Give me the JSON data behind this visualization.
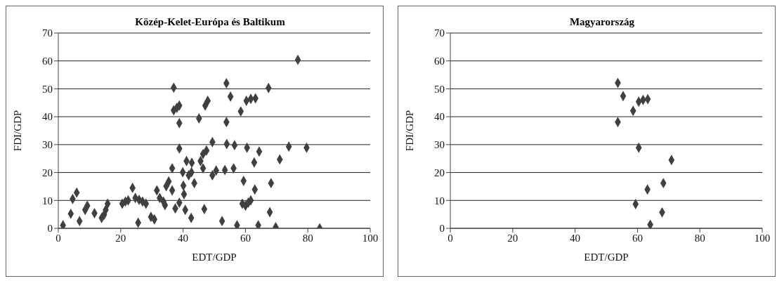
{
  "chart_data": [
    {
      "type": "scatter",
      "title": "Közép-Kelet-Európa és Baltikum",
      "xlabel": "EDT/GDP",
      "ylabel": "FDI/GDP",
      "xlim": [
        0,
        100
      ],
      "xticks": [
        0,
        20,
        40,
        60,
        80,
        100
      ],
      "ylim": [
        0,
        70
      ],
      "yticks": [
        0,
        10,
        20,
        30,
        40,
        50,
        60,
        70
      ],
      "grid": "y",
      "marker": "diamond",
      "series": [
        {
          "color": "#404040",
          "x": [
            1.5,
            4,
            4.6,
            5.9,
            6.8,
            8.6,
            9.3,
            11.6,
            13.9,
            14.7,
            15.2,
            15.8,
            20.5,
            21.5,
            22.4,
            23.8,
            24.7,
            25.9,
            25.6,
            27,
            28.1,
            29.7,
            30.8,
            31.6,
            32.5,
            33.7,
            34.2,
            34.6,
            35.4,
            36.5,
            36.5,
            37,
            37.5,
            37,
            38,
            38.8,
            38.8,
            38.8,
            38.8,
            39.9,
            40.1,
            40.3,
            40.7,
            41.1,
            42.8,
            41.8,
            42.7,
            42.6,
            43.6,
            45.1,
            45.6,
            46.4,
            47.5,
            46.8,
            46.4,
            47.1,
            47.9,
            49.4,
            49.4,
            50.6,
            53.4,
            53.9,
            53.9,
            52.5,
            54,
            55.2,
            56.2,
            56.5,
            57.3,
            58.5,
            59.4,
            59,
            60,
            60.9,
            61.7,
            60.5,
            60.3,
            61.7,
            63.2,
            62.8,
            63,
            64.1,
            64.4,
            67.4,
            67.8,
            68.2,
            69.7,
            71,
            73.9,
            76.8,
            79.6,
            83.8
          ],
          "values": [
            1.1,
            5.2,
            10.5,
            12.8,
            2.6,
            6.6,
            8.1,
            5.4,
            3.7,
            4.9,
            6.6,
            8.8,
            8.8,
            9.6,
            10,
            14.5,
            10.9,
            10.2,
            2,
            9.6,
            8.8,
            4.1,
            3.2,
            13.6,
            10.9,
            9.6,
            8.3,
            15.1,
            16.8,
            13.6,
            21.5,
            50.4,
            7.1,
            42.3,
            43.2,
            44,
            37.7,
            28.6,
            9.2,
            20.1,
            15.3,
            12.2,
            6.6,
            24.1,
            23.5,
            19,
            20.1,
            3.7,
            16.2,
            39.4,
            24.1,
            26.6,
            27.9,
            6.9,
            21.5,
            44,
            45.7,
            30.9,
            19,
            20.7,
            20.9,
            52,
            38.1,
            2.6,
            30.2,
            47.2,
            21.5,
            29.8,
            1.1,
            41.9,
            17,
            8.8,
            8.1,
            9.2,
            10,
            28.9,
            45.7,
            46.4,
            46.6,
            23.6,
            13.9,
            1.1,
            27.5,
            50.3,
            5.8,
            16.2,
            0.4,
            24.7,
            29.3,
            60.4,
            28.9,
            0
          ]
        }
      ]
    },
    {
      "type": "scatter",
      "title": "Magyarország",
      "xlabel": "EDT/GDP",
      "ylabel": "FDI/GDP",
      "xlim": [
        0,
        100
      ],
      "xticks": [
        0,
        20,
        40,
        60,
        80,
        100
      ],
      "ylim": [
        0,
        70
      ],
      "yticks": [
        0,
        10,
        20,
        30,
        40,
        50,
        60,
        70
      ],
      "grid": "y",
      "marker": "diamond",
      "series": [
        {
          "color": "#404040",
          "x": [
            53.7,
            55.4,
            58.6,
            53.7,
            60.4,
            61.8,
            63.3,
            60.4,
            70.9,
            68.3,
            63.2,
            59.4,
            67.9,
            64.1
          ],
          "values": [
            52.1,
            47.4,
            42.1,
            38.1,
            45.4,
            46,
            46.3,
            28.9,
            24.5,
            16.2,
            13.9,
            8.7,
            5.7,
            1.3
          ]
        }
      ]
    }
  ]
}
